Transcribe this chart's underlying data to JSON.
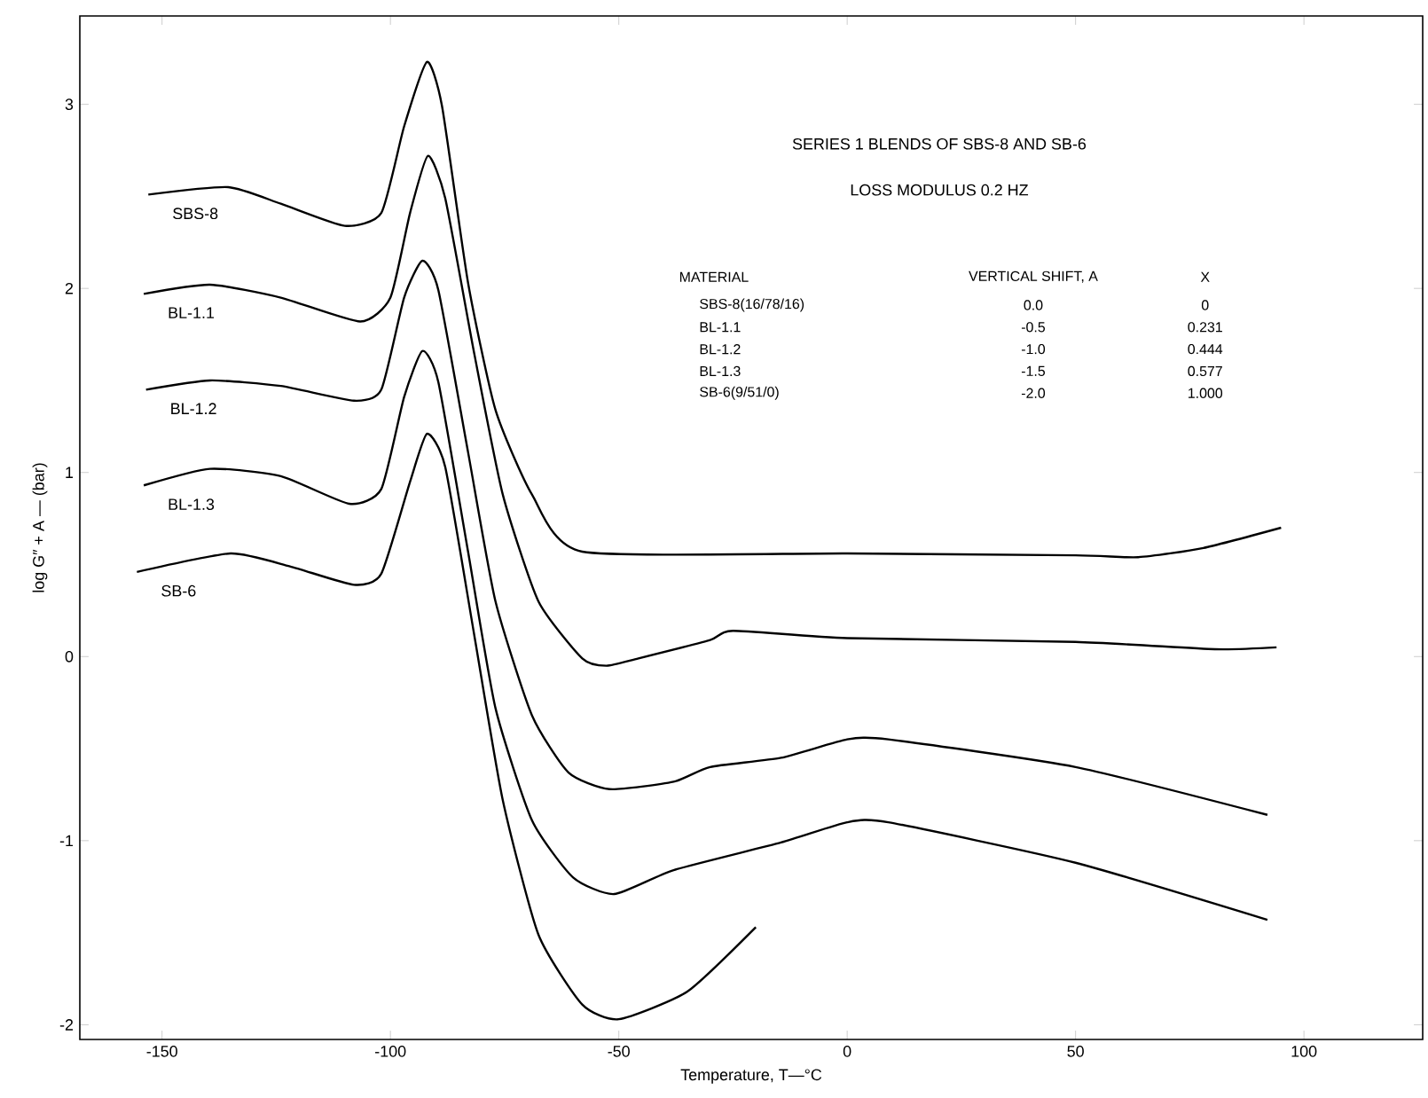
{
  "chart_data": {
    "type": "line",
    "title": "SERIES 1  BLENDS OF SBS-8 AND SB-6",
    "subtitle": "LOSS MODULUS  0.2 HZ",
    "xlabel": "Temperature, T—°C",
    "ylabel": "log G″ + A — (bar)",
    "xlim": [
      -168,
      126
    ],
    "ylim": [
      -2.08,
      3.48
    ],
    "xticks": [
      -150,
      -100,
      -50,
      0,
      50,
      100
    ],
    "yticks": [
      -2,
      -1,
      0,
      1,
      2,
      3
    ],
    "annotations": [
      "MATERIAL",
      "VERTICAL SHIFT, A",
      "X",
      "SBS-8(16/78/16)",
      "0.0",
      "0",
      "BL-1.1",
      "-0.5",
      "0.231",
      "BL-1.2",
      "-1.0",
      "0.444",
      "BL-1.3",
      "-1.5",
      "0.577",
      "SB-6(9/51/0)",
      "-2.0",
      "1.000"
    ],
    "series": [
      {
        "name": "SBS-8",
        "color": "#000000",
        "x": [
          -153,
          -135.5,
          -124,
          -110,
          -102,
          -97,
          -92,
          -88.7,
          -83,
          -77,
          -69,
          -58,
          0,
          50,
          63.7,
          78,
          95
        ],
        "values": [
          2.51,
          2.55,
          2.46,
          2.34,
          2.41,
          2.88,
          3.23,
          2.99,
          2.03,
          1.34,
          0.88,
          0.57,
          0.56,
          0.55,
          0.54,
          0.59,
          0.7
        ]
      },
      {
        "name": "BL-1.1",
        "color": "#000000",
        "x": [
          -154,
          -139.5,
          -124,
          -106.6,
          -100,
          -95.7,
          -91.8,
          -88,
          -81.6,
          -75.4,
          -67.6,
          -58,
          -52.7,
          -45.7,
          -30,
          -25,
          0,
          50,
          80.5,
          94
        ],
        "values": [
          1.97,
          2.02,
          1.95,
          1.82,
          1.95,
          2.41,
          2.72,
          2.49,
          1.64,
          0.88,
          0.3,
          -0.01,
          -0.05,
          -0.01,
          0.09,
          0.14,
          0.1,
          0.08,
          0.04,
          0.05
        ]
      },
      {
        "name": "BL-1.2",
        "color": "#000000",
        "x": [
          -153.5,
          -139.5,
          -124,
          -108,
          -102,
          -97,
          -93,
          -89.5,
          -83,
          -77,
          -69,
          -61,
          -52,
          -38,
          -30,
          -14.5,
          0,
          9,
          50,
          92
        ],
        "values": [
          1.45,
          1.5,
          1.47,
          1.39,
          1.45,
          1.95,
          2.15,
          1.99,
          1.11,
          0.3,
          -0.32,
          -0.63,
          -0.72,
          -0.68,
          -0.6,
          -0.55,
          -0.45,
          -0.45,
          -0.6,
          -0.86
        ]
      },
      {
        "name": "BL-1.3",
        "color": "#000000",
        "x": [
          -154,
          -139.5,
          -124,
          -109,
          -102,
          -97,
          -93,
          -89.5,
          -83,
          -77,
          -69,
          -60,
          -51,
          -38,
          -14.5,
          0,
          9,
          50,
          92
        ],
        "values": [
          0.93,
          1.02,
          0.98,
          0.83,
          0.91,
          1.41,
          1.66,
          1.49,
          0.57,
          -0.28,
          -0.89,
          -1.2,
          -1.29,
          -1.16,
          -1.01,
          -0.9,
          -0.9,
          -1.12,
          -1.43
        ]
      },
      {
        "name": "SB-6",
        "color": "#000000",
        "x": [
          -155.5,
          -135,
          -122,
          -108,
          -102,
          -95.7,
          -92,
          -88,
          -81.6,
          -75.4,
          -67.6,
          -58,
          -50,
          -35,
          -20
        ],
        "values": [
          0.46,
          0.56,
          0.49,
          0.39,
          0.45,
          0.95,
          1.21,
          1.03,
          0.11,
          -0.78,
          -1.51,
          -1.89,
          -1.97,
          -1.82,
          -1.47
        ]
      }
    ]
  }
}
